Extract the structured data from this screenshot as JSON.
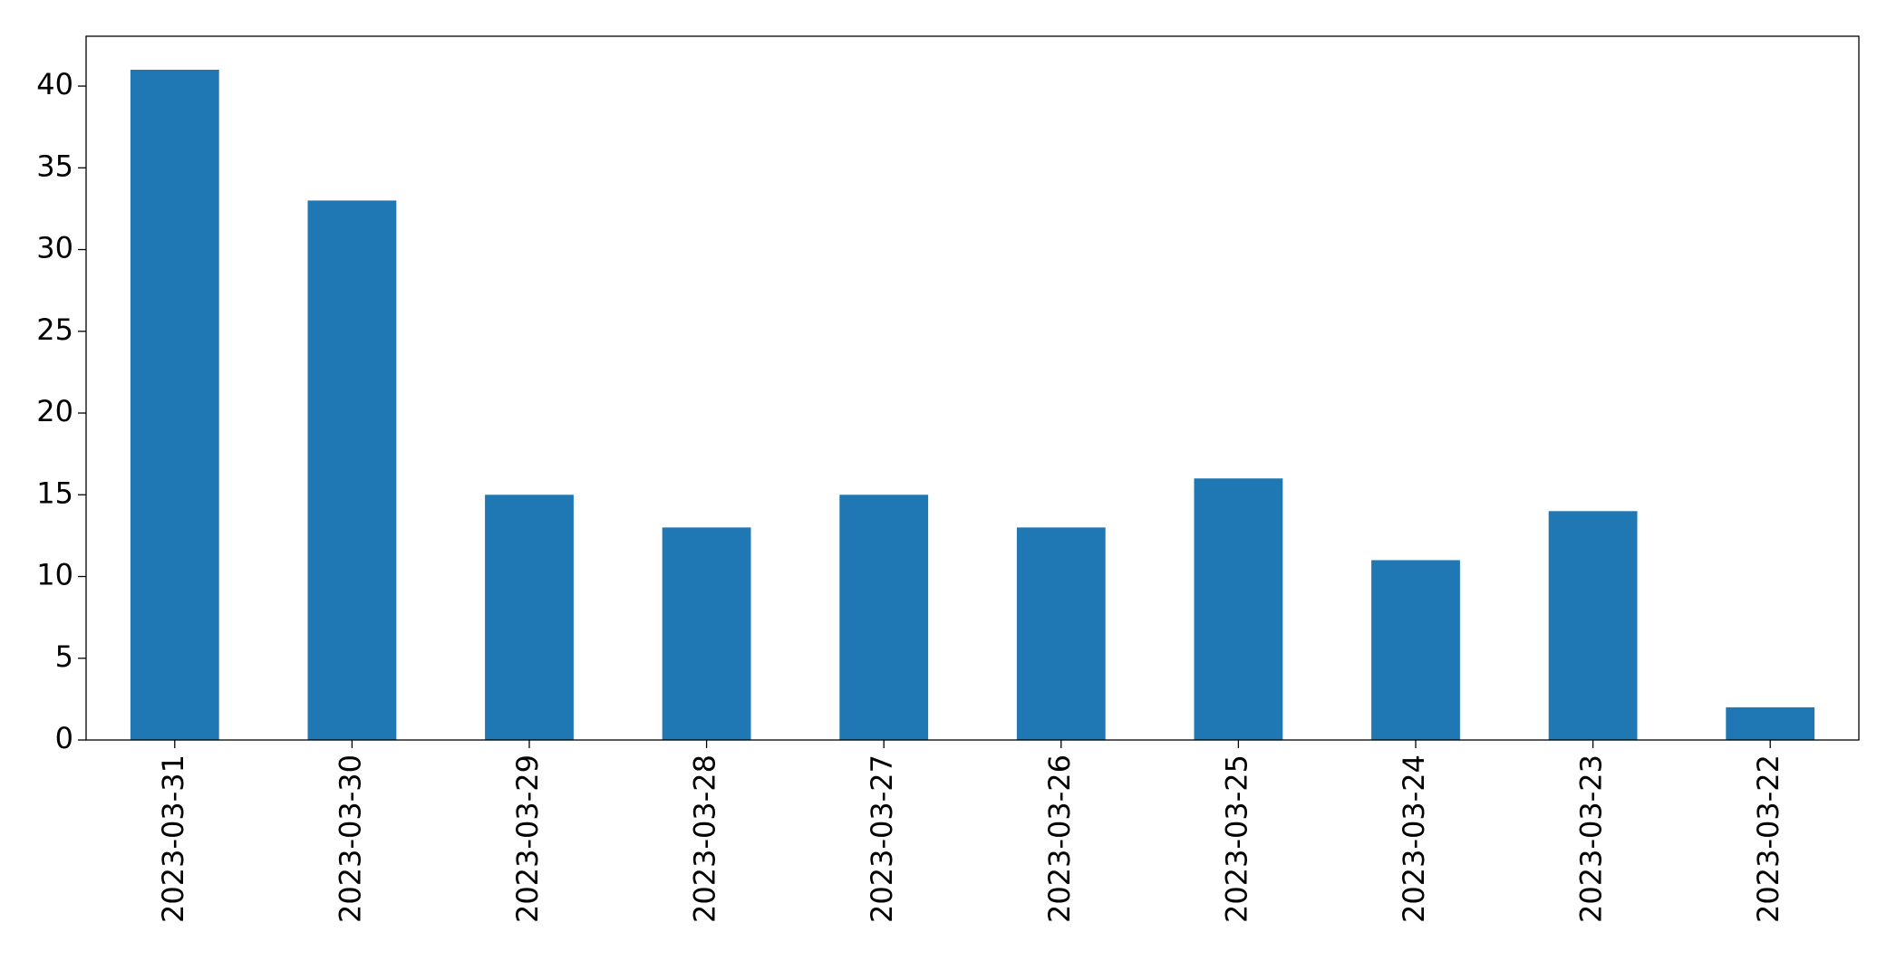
{
  "chart_data": {
    "type": "bar",
    "categories": [
      "2023-03-31",
      "2023-03-30",
      "2023-03-29",
      "2023-03-28",
      "2023-03-27",
      "2023-03-26",
      "2023-03-25",
      "2023-03-24",
      "2023-03-23",
      "2023-03-22"
    ],
    "values": [
      41,
      33,
      15,
      13,
      15,
      13,
      16,
      11,
      14,
      2
    ],
    "color": "#1f77b4",
    "ylim": [
      0,
      43.05
    ],
    "yticks": [
      0,
      5,
      10,
      15,
      20,
      25,
      30,
      35,
      40
    ],
    "grid": false
  }
}
